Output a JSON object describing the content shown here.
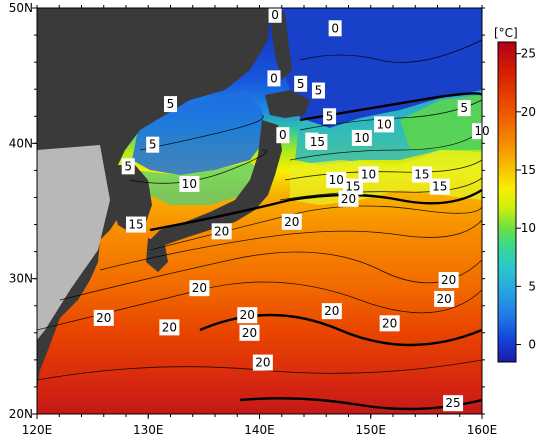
{
  "map": {
    "lon_range": [
      120,
      160
    ],
    "lat_range": [
      20,
      50
    ],
    "x_ticks": [
      {
        "lon": 120,
        "label": "120E"
      },
      {
        "lon": 130,
        "label": "130E"
      },
      {
        "lon": 140,
        "label": "140E"
      },
      {
        "lon": 150,
        "label": "150E"
      },
      {
        "lon": 160,
        "label": "160E"
      }
    ],
    "y_ticks": [
      {
        "lat": 20,
        "label": "20N"
      },
      {
        "lat": 30,
        "label": "30N"
      },
      {
        "lat": 40,
        "label": "40N"
      },
      {
        "lat": 50,
        "label": "50N"
      }
    ],
    "contour_labels": [
      {
        "text": "0",
        "lon": 146.8,
        "lat": 48.5
      },
      {
        "text": "0",
        "lon": 141.3,
        "lat": 44.8
      },
      {
        "text": "0",
        "lon": 141.4,
        "lat": 49.5
      },
      {
        "text": "0",
        "lon": 142.1,
        "lat": 40.6
      },
      {
        "text": "5",
        "lon": 143.7,
        "lat": 44.4
      },
      {
        "text": "5",
        "lon": 132.0,
        "lat": 42.9
      },
      {
        "text": "5",
        "lon": 130.4,
        "lat": 39.9
      },
      {
        "text": "5",
        "lon": 128.2,
        "lat": 38.3
      },
      {
        "text": "5",
        "lon": 145.3,
        "lat": 43.9
      },
      {
        "text": "5",
        "lon": 146.3,
        "lat": 42.0
      },
      {
        "text": "5",
        "lon": 144.7,
        "lat": 40.2
      },
      {
        "text": "5",
        "lon": 158.4,
        "lat": 42.6
      },
      {
        "text": "10",
        "lon": 151.2,
        "lat": 41.4
      },
      {
        "text": "10",
        "lon": 149.2,
        "lat": 40.4
      },
      {
        "text": "10",
        "lon": 160.0,
        "lat": 40.9
      },
      {
        "text": "10",
        "lon": 133.7,
        "lat": 37.0
      },
      {
        "text": "10",
        "lon": 146.9,
        "lat": 37.3
      },
      {
        "text": "10",
        "lon": 149.8,
        "lat": 37.7
      },
      {
        "text": "15",
        "lon": 145.2,
        "lat": 40.1
      },
      {
        "text": "15",
        "lon": 148.4,
        "lat": 36.8
      },
      {
        "text": "15",
        "lon": 154.6,
        "lat": 37.7
      },
      {
        "text": "15",
        "lon": 156.2,
        "lat": 36.8
      },
      {
        "text": "15",
        "lon": 128.9,
        "lat": 34.0
      },
      {
        "text": "20",
        "lon": 148.0,
        "lat": 35.9
      },
      {
        "text": "20",
        "lon": 142.9,
        "lat": 34.2
      },
      {
        "text": "20",
        "lon": 136.6,
        "lat": 33.5
      },
      {
        "text": "20",
        "lon": 134.6,
        "lat": 29.3
      },
      {
        "text": "20",
        "lon": 126.0,
        "lat": 27.1
      },
      {
        "text": "20",
        "lon": 131.9,
        "lat": 26.4
      },
      {
        "text": "20",
        "lon": 138.9,
        "lat": 27.3
      },
      {
        "text": "20",
        "lon": 139.1,
        "lat": 26.0
      },
      {
        "text": "20",
        "lon": 146.5,
        "lat": 27.6
      },
      {
        "text": "20",
        "lon": 151.7,
        "lat": 26.7
      },
      {
        "text": "20",
        "lon": 157.0,
        "lat": 29.9
      },
      {
        "text": "20",
        "lon": 156.6,
        "lat": 28.5
      },
      {
        "text": "20",
        "lon": 140.3,
        "lat": 23.8
      },
      {
        "text": "25",
        "lon": 157.4,
        "lat": 20.8
      }
    ]
  },
  "colorbar": {
    "unit": "[°C]",
    "range": [
      -1.5,
      26
    ],
    "ticks": [
      0,
      5,
      10,
      15,
      20,
      25
    ],
    "tick_labels": [
      "0",
      "5",
      "10",
      "15",
      "20",
      "25"
    ],
    "colors": [
      "#1a1aa8",
      "#1444d8",
      "#1e78e8",
      "#28a8e0",
      "#2cc8c8",
      "#38d890",
      "#70e040",
      "#c8f010",
      "#f8f000",
      "#f8c400",
      "#f89400",
      "#f06c00",
      "#e84400",
      "#d82000",
      "#c00010",
      "#b00018"
    ]
  }
}
